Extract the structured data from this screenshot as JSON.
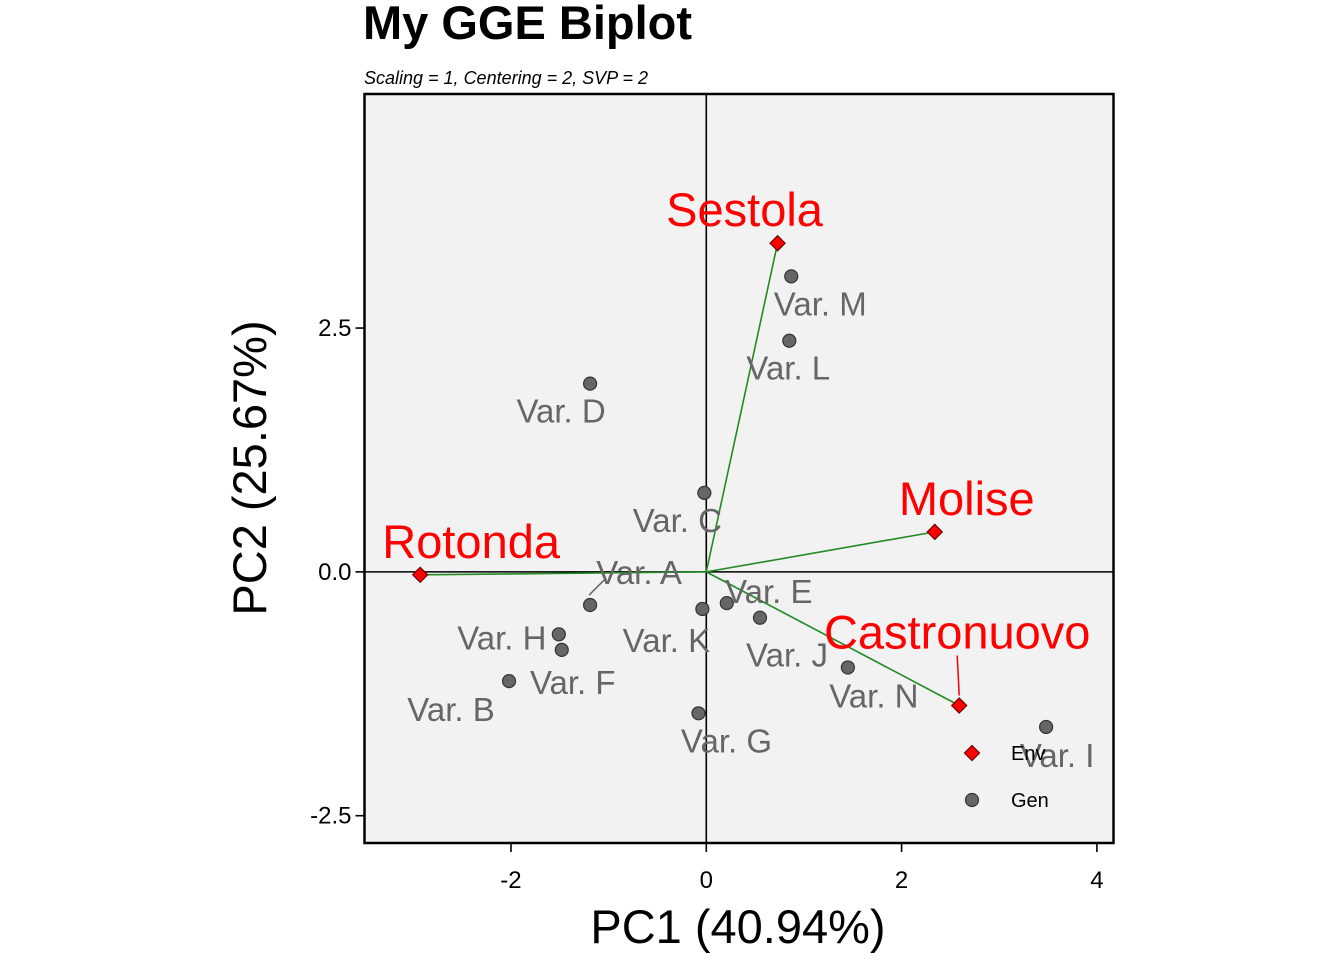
{
  "chart_data": {
    "type": "scatter",
    "title": "My GGE Biplot",
    "subtitle": "Scaling = 1, Centering = 2, SVP = 2",
    "xlabel": "PC1 (40.94%)",
    "ylabel": "PC2 (25.67%)",
    "xlim": [
      -3.5,
      4.17
    ],
    "ylim": [
      -2.78,
      4.9
    ],
    "x_ticks": [
      -2,
      0,
      2,
      4
    ],
    "y_ticks": [
      -2.5,
      0.0,
      2.5
    ],
    "x_tick_labels": [
      "-2",
      "0",
      "2",
      "4"
    ],
    "y_tick_labels": [
      "-2.5",
      "0.0",
      "2.5"
    ],
    "grid": false,
    "legend_position": "bottom-right",
    "colors": {
      "panel": "#f2f2f2",
      "env": "#ff0000",
      "gen_point": "#666666",
      "gen_label": "#666666",
      "vector": "#228b22"
    },
    "legend": [
      {
        "label": "Env",
        "shape": "diamond",
        "color": "#ff0000"
      },
      {
        "label": "Gen",
        "shape": "circle",
        "color": "#666666"
      }
    ],
    "environments": [
      {
        "name": "Sestola",
        "x": 0.73,
        "y": 3.37
      },
      {
        "name": "Molise",
        "x": 2.34,
        "y": 0.41
      },
      {
        "name": "Rotonda",
        "x": -2.93,
        "y": -0.03
      },
      {
        "name": "Castronuovo",
        "x": 2.59,
        "y": -1.37
      }
    ],
    "genotypes": [
      {
        "name": "Var. M",
        "x": 0.87,
        "y": 3.03
      },
      {
        "name": "Var. L",
        "x": 0.85,
        "y": 2.37
      },
      {
        "name": "Var. D",
        "x": -1.19,
        "y": 1.93
      },
      {
        "name": "Var. C",
        "x": -0.02,
        "y": 0.81
      },
      {
        "name": "Var. A",
        "x": -1.19,
        "y": -0.34
      },
      {
        "name": "Var. E",
        "x": 0.21,
        "y": -0.32
      },
      {
        "name": "Var. H",
        "x": -1.51,
        "y": -0.64
      },
      {
        "name": "Var. K",
        "x": -0.04,
        "y": -0.38
      },
      {
        "name": "Var. J",
        "x": 0.55,
        "y": -0.47
      },
      {
        "name": "Var. F",
        "x": -1.48,
        "y": -0.8
      },
      {
        "name": "Var. N",
        "x": 1.45,
        "y": -0.98
      },
      {
        "name": "Var. B",
        "x": -2.02,
        "y": -1.12
      },
      {
        "name": "Var. G",
        "x": -0.08,
        "y": -1.45
      },
      {
        "name": "Var. I",
        "x": 3.48,
        "y": -1.59
      }
    ]
  }
}
